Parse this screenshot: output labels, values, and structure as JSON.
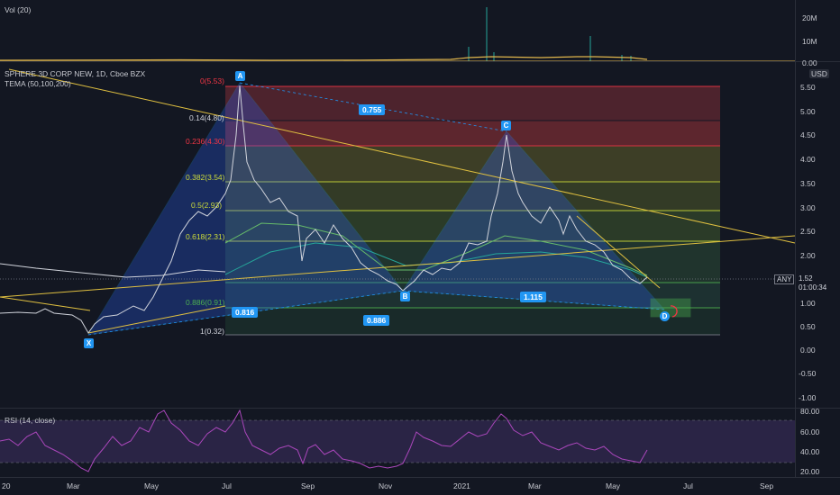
{
  "volume_pane": {
    "title": "Vol (20)",
    "axis_labels": [
      "20M",
      "10M",
      "0.00"
    ]
  },
  "symbol_header": {
    "title": "SPHERE 3D CORP NEW, 1D, Cboe BZX",
    "indicator": "TEMA (50,100,200)",
    "currency": "USD"
  },
  "price_axis": {
    "labels": [
      "5.50",
      "5.00",
      "4.50",
      "4.00",
      "3.50",
      "3.00",
      "2.50",
      "2.00",
      "1.50",
      "1.00",
      "0.50",
      "0.00",
      "-0.50",
      "-1.00"
    ],
    "current_tag": "ANY",
    "current_price": "1.52",
    "countdown": "01:00:34"
  },
  "fib_levels": [
    {
      "label": "0(5.53)",
      "price": 5.53,
      "color": "#f23645"
    },
    {
      "label": "0.14(4.80)",
      "price": 4.8,
      "color": "#b2b5be"
    },
    {
      "label": "0.236(4.30)",
      "price": 4.3,
      "color": "#f23645"
    },
    {
      "label": "0.382(3.54)",
      "price": 3.54,
      "color": "#cddc39"
    },
    {
      "label": "0.5(2.93)",
      "price": 2.93,
      "color": "#cddc39"
    },
    {
      "label": "0.618(2.31)",
      "price": 2.31,
      "color": "#cddc39"
    },
    {
      "label": "0.786(1.44)",
      "price": 1.44,
      "color": "#4caf50"
    },
    {
      "label": "0.886(0.91)",
      "price": 0.91,
      "color": "#4caf50"
    },
    {
      "label": "1(0.32)",
      "price": 0.32,
      "color": "#b2b5be"
    }
  ],
  "pattern_points": [
    "X",
    "A",
    "B",
    "C",
    "D"
  ],
  "pattern_ratios": [
    "0.755",
    "0.816",
    "0.886",
    "1.115"
  ],
  "rsi_pane": {
    "title": "RSI (14, close)",
    "axis_labels": [
      "80.00",
      "60.00",
      "40.00",
      "20.00"
    ]
  },
  "time_axis": {
    "labels": [
      "20",
      "Mar",
      "May",
      "Jul",
      "Sep",
      "Nov",
      "2021",
      "Mar",
      "May",
      "Jul",
      "Sep"
    ]
  }
}
